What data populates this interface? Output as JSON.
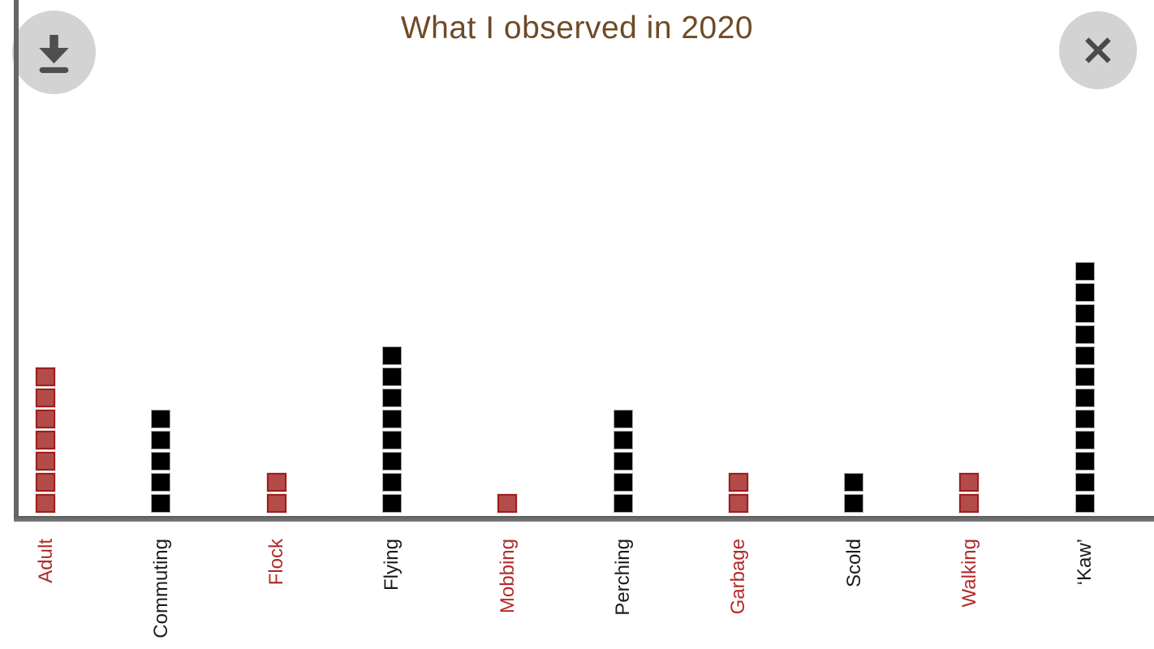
{
  "header": {
    "title": "What I observed in 2020"
  },
  "toolbar": {
    "icons": {
      "download": "download-icon",
      "close": "close-icon"
    }
  },
  "colors": {
    "title_text": "#6e4a25",
    "axis": "#666666",
    "red_fill": "#b34b49",
    "red_border": "#9c1f1e",
    "red_label": "#b22a2a",
    "black_fill": "#000000",
    "black_border": "#a6a6a6",
    "button_bg": "#d3d3d3",
    "button_glyph": "#4f4f4f"
  },
  "chart_data": {
    "type": "bar",
    "subtype": "unit_square_stack",
    "title": "What I observed in 2020",
    "categories": [
      "Adult",
      "Commuting",
      "Flock",
      "Flying",
      "Mobbing",
      "Perching",
      "Garbage",
      "Scold",
      "Walking",
      "‘Kaw’"
    ],
    "values": [
      7,
      5,
      2,
      8,
      1,
      5,
      2,
      2,
      2,
      12
    ],
    "color_key": [
      "red",
      "black",
      "red",
      "black",
      "red",
      "black",
      "red",
      "black",
      "red",
      "black"
    ],
    "unit_value": 1,
    "xlabel": "",
    "ylabel": "",
    "ylim": [
      0,
      12
    ],
    "grid": false,
    "legend": "none",
    "x_tick_rotation_deg": 90,
    "x_tick_reading_direction": "bottom-to-top"
  }
}
